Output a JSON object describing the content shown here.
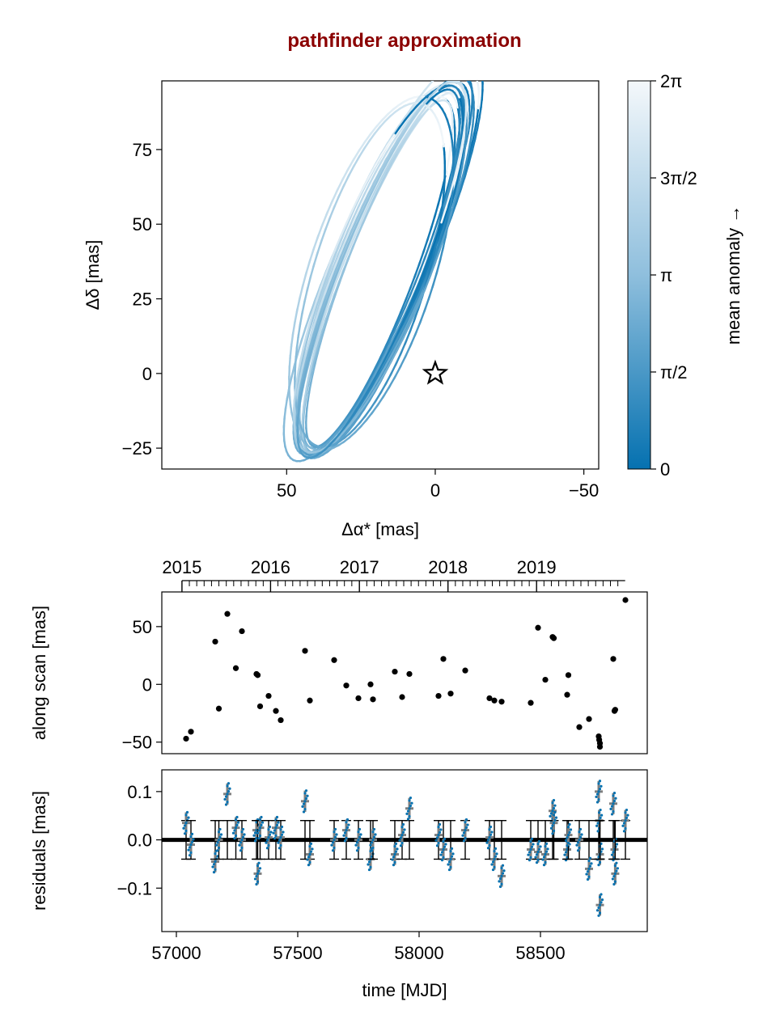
{
  "chart_data": [
    {
      "id": "orbit",
      "type": "line",
      "title": "pathfinder approximation",
      "title_color": "#8b0000",
      "xlabel": "Δα* [mas]",
      "ylabel": "Δδ [mas]",
      "xlim": [
        92,
        -55
      ],
      "ylim": [
        -32,
        98
      ],
      "x_reversed": true,
      "xticks": [
        50,
        0,
        -50
      ],
      "xtick_labels": [
        "50",
        "0",
        "−50"
      ],
      "yticks": [
        75,
        50,
        25,
        0,
        -25
      ],
      "ytick_labels": [
        "75",
        "50",
        "25",
        "0",
        "−25"
      ],
      "star_marker": {
        "x": 0,
        "y": 0,
        "symbol": "star",
        "fill": "#ffffff",
        "stroke": "#000000"
      },
      "orbit_color_low": "#0571b0",
      "orbit_color_high": "#f4f8fb",
      "orbits": [
        {
          "cx": 18.0,
          "cy": 35.0,
          "a": 68.0,
          "b": 14.0,
          "angle_deg": 112,
          "phase_deg": 0
        },
        {
          "cx": 18.5,
          "cy": 34.0,
          "a": 66.5,
          "b": 14.5,
          "angle_deg": 112,
          "phase_deg": 10
        },
        {
          "cx": 17.5,
          "cy": 35.5,
          "a": 67.0,
          "b": 13.5,
          "angle_deg": 113,
          "phase_deg": -8
        },
        {
          "cx": 19.0,
          "cy": 33.5,
          "a": 65.0,
          "b": 15.0,
          "angle_deg": 111,
          "phase_deg": 18
        },
        {
          "cx": 17.0,
          "cy": 36.5,
          "a": 69.0,
          "b": 13.0,
          "angle_deg": 113,
          "phase_deg": -15
        },
        {
          "cx": 18.0,
          "cy": 34.5,
          "a": 64.0,
          "b": 12.0,
          "angle_deg": 112,
          "phase_deg": 25
        },
        {
          "cx": 19.5,
          "cy": 33.0,
          "a": 63.5,
          "b": 15.5,
          "angle_deg": 110,
          "phase_deg": 5
        },
        {
          "cx": 16.5,
          "cy": 37.0,
          "a": 70.0,
          "b": 14.0,
          "angle_deg": 114,
          "phase_deg": 30
        },
        {
          "cx": 18.5,
          "cy": 35.0,
          "a": 66.0,
          "b": 13.8,
          "angle_deg": 112,
          "phase_deg": -20
        },
        {
          "cx": 17.8,
          "cy": 34.8,
          "a": 67.5,
          "b": 14.8,
          "angle_deg": 112,
          "phase_deg": 40
        },
        {
          "cx": 18.2,
          "cy": 33.8,
          "a": 65.5,
          "b": 13.2,
          "angle_deg": 111,
          "phase_deg": -30
        },
        {
          "cx": 19.0,
          "cy": 34.2,
          "a": 66.8,
          "b": 16.0,
          "angle_deg": 111,
          "phase_deg": 15
        },
        {
          "cx": 18.8,
          "cy": 33.5,
          "a": 62.0,
          "b": 11.5,
          "angle_deg": 111,
          "phase_deg": 50
        },
        {
          "cx": 17.2,
          "cy": 36.0,
          "a": 68.5,
          "b": 15.2,
          "angle_deg": 113,
          "phase_deg": -40
        },
        {
          "cx": 18.0,
          "cy": 35.2,
          "a": 67.2,
          "b": 14.2,
          "angle_deg": 112,
          "phase_deg": 60
        },
        {
          "cx": 21.5,
          "cy": 33.5,
          "a": 62.0,
          "b": 21.0,
          "angle_deg": 108,
          "phase_deg": -5
        },
        {
          "cx": 17.5,
          "cy": 38.5,
          "a": 74.0,
          "b": 16.0,
          "angle_deg": 114,
          "phase_deg": 12
        },
        {
          "cx": 22.0,
          "cy": 33.0,
          "a": 60.0,
          "b": 19.0,
          "angle_deg": 107,
          "phase_deg": 35
        },
        {
          "cx": 18.5,
          "cy": 35.0,
          "a": 66.0,
          "b": 16.5,
          "angle_deg": 112,
          "phase_deg": -50
        },
        {
          "cx": 18.0,
          "cy": 35.0,
          "a": 68.0,
          "b": 13.5,
          "angle_deg": 112,
          "phase_deg": 70
        }
      ]
    },
    {
      "id": "colorbar",
      "type": "heatmap",
      "label": "mean anomaly →",
      "ticks": [
        "0",
        "π/2",
        "π",
        "3π/2",
        "2π"
      ],
      "color_low": "#0571b0",
      "color_high": "#f4f8fb"
    },
    {
      "id": "along_scan",
      "type": "scatter",
      "ylabel": "along scan [mas]",
      "xlim": [
        56940,
        58940
      ],
      "ylim": [
        -60,
        80
      ],
      "yticks": [
        50,
        0,
        -50
      ],
      "ytick_labels": [
        "50",
        "0",
        "−50"
      ],
      "top_axis_years": [
        "2015",
        "2016",
        "2017",
        "2018",
        "2019"
      ],
      "top_axis_year_mjd": [
        57023,
        57388,
        57754,
        58119,
        58484
      ],
      "x": [
        57040,
        57060,
        57160,
        57175,
        57210,
        57245,
        57270,
        57330,
        57335,
        57345,
        57380,
        57410,
        57430,
        57530,
        57550,
        57650,
        57700,
        57750,
        57800,
        57810,
        57900,
        57930,
        57960,
        58080,
        58100,
        58130,
        58190,
        58290,
        58310,
        58340,
        58460,
        58490,
        58520,
        58550,
        58555,
        58610,
        58615,
        58660,
        58700,
        58740,
        58742,
        58745,
        58745,
        58800,
        58805,
        58808,
        58850
      ],
      "y": [
        -47,
        -41,
        37,
        -21,
        61,
        14,
        46,
        9,
        8,
        -19,
        -10,
        -23,
        -31,
        29,
        -14,
        21,
        -1,
        -12,
        0,
        -13,
        11,
        -11,
        9,
        -10,
        22,
        -8,
        12,
        -12,
        -14,
        -15,
        -16,
        49,
        4,
        41,
        40,
        -9,
        8,
        -37,
        -30,
        -45,
        -48,
        -51,
        -54,
        22,
        -23,
        -22,
        73
      ]
    },
    {
      "id": "residuals",
      "type": "scatter",
      "xlabel": "time [MJD]",
      "ylabel": "residuals [mas]",
      "xlim": [
        56940,
        58940
      ],
      "ylim": [
        -0.19,
        0.145
      ],
      "xticks": [
        57000,
        57500,
        58000,
        58500
      ],
      "xtick_labels": [
        "57000",
        "57500",
        "58000",
        "58500"
      ],
      "yticks": [
        0.1,
        0.0,
        -0.1
      ],
      "ytick_labels": [
        "0.1",
        "0.0",
        "−0.1"
      ],
      "zero_line": 0,
      "errorbar_halfwidth": 0.04,
      "x": [
        57040,
        57060,
        57160,
        57175,
        57210,
        57245,
        57270,
        57330,
        57335,
        57345,
        57380,
        57410,
        57430,
        57530,
        57550,
        57650,
        57700,
        57750,
        57800,
        57810,
        57900,
        57930,
        57960,
        58080,
        58100,
        58130,
        58190,
        58290,
        58310,
        58340,
        58460,
        58490,
        58520,
        58550,
        58555,
        58610,
        58615,
        58660,
        58700,
        58740,
        58742,
        58745,
        58745,
        58800,
        58805,
        58808,
        58850
      ],
      "y": [
        0.035,
        -0.01,
        -0.045,
        0.0,
        0.095,
        0.025,
        0.0,
        0.02,
        -0.07,
        0.025,
        0.005,
        0.025,
        0.005,
        0.08,
        -0.03,
        0.0,
        0.02,
        0.0,
        -0.04,
        0.0,
        -0.03,
        0.01,
        0.065,
        0.01,
        -0.02,
        -0.04,
        0.02,
        0.005,
        -0.04,
        -0.075,
        -0.02,
        -0.025,
        -0.03,
        0.06,
        0.035,
        -0.02,
        0.01,
        0.0,
        -0.06,
        0.1,
        0.04,
        -0.03,
        -0.135,
        0.075,
        -0.02,
        -0.07,
        0.04
      ]
    }
  ]
}
